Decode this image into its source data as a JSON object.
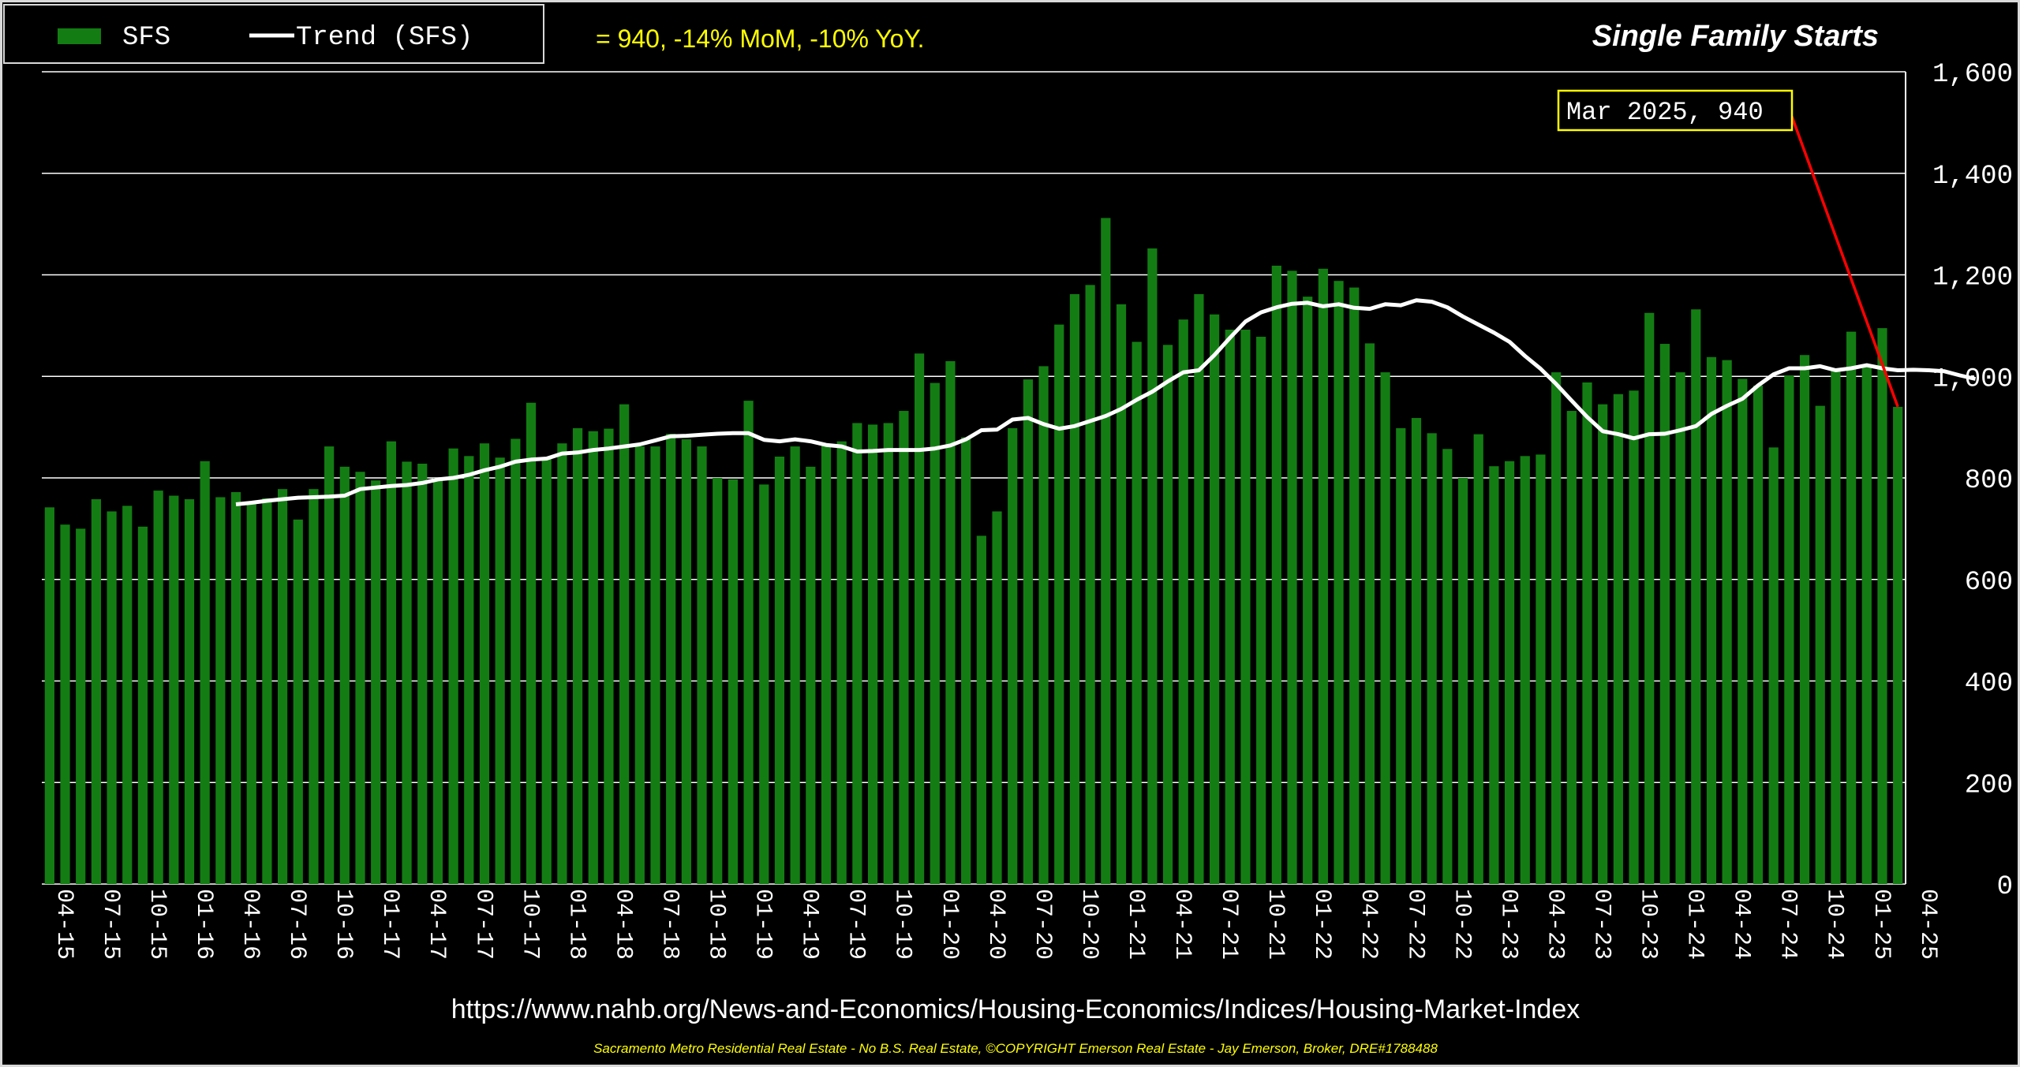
{
  "colors": {
    "background": "#000000",
    "bars": "#137d13",
    "trend": "#ffffff",
    "subtitle": "#ffff00",
    "callout_border": "#ffff00",
    "callout_line": "#ff0000",
    "grid": "#ffffff",
    "footer": "#ffff00"
  },
  "legend": {
    "bar_label": "SFS",
    "line_label": "Trend (SFS)"
  },
  "subtitle": "= 940, -14% MoM, -10% YoY.",
  "footer": {
    "url": "https://www.nahb.org/News-and-Economics/Housing-Economics/Indices/Housing-Market-Index",
    "credit": "Sacramento Metro Residential Real Estate - No B.S. Real Estate, ©COPYRIGHT Emerson Real Estate - Jay Emerson, Broker, DRE#1788488"
  },
  "chart_data": {
    "type": "bar",
    "title": "Single Family Starts",
    "ylim": [
      0,
      1600
    ],
    "yticks": [
      0,
      200,
      400,
      600,
      800,
      1000,
      1200,
      1400,
      1600
    ],
    "y_axis_side": "right",
    "grid": true,
    "legend_position": "top-left",
    "x_start": "2015-04",
    "x_tick_labels": [
      "04-15",
      "07-15",
      "10-15",
      "01-16",
      "04-16",
      "07-16",
      "10-16",
      "01-17",
      "04-17",
      "07-17",
      "10-17",
      "01-18",
      "04-18",
      "07-18",
      "10-18",
      "01-19",
      "04-19",
      "07-19",
      "10-19",
      "01-20",
      "04-20",
      "07-20",
      "10-20",
      "01-21",
      "04-21",
      "07-21",
      "10-21",
      "01-22",
      "04-22",
      "07-22",
      "10-22",
      "01-23",
      "04-23",
      "07-23",
      "10-23",
      "01-24",
      "04-24",
      "07-24",
      "10-24",
      "01-25",
      "04-25"
    ],
    "series": [
      {
        "name": "SFS",
        "type": "bar",
        "values": [
          742,
          708,
          700,
          758,
          734,
          745,
          704,
          775,
          765,
          758,
          833,
          762,
          772,
          748,
          760,
          778,
          718,
          778,
          862,
          822,
          812,
          795,
          872,
          832,
          828,
          800,
          858,
          843,
          868,
          840,
          877,
          948,
          837,
          868,
          898,
          892,
          897,
          945,
          862,
          862,
          887,
          876,
          862,
          800,
          797,
          952,
          787,
          842,
          862,
          822,
          866,
          872,
          908,
          905,
          908,
          932,
          1045,
          987,
          1030,
          880,
          686,
          734,
          898,
          994,
          1020,
          1102,
          1162,
          1180,
          1312,
          1142,
          1068,
          1252,
          1062,
          1112,
          1162,
          1122,
          1092,
          1092,
          1078,
          1218,
          1208,
          1157,
          1212,
          1188,
          1175,
          1065,
          1008,
          898,
          918,
          888,
          857,
          800,
          886,
          823,
          833,
          843,
          846,
          1008,
          932,
          988,
          945,
          965,
          972,
          1125,
          1064,
          1008,
          1132,
          1038,
          1032,
          995,
          982,
          860,
          1002,
          1042,
          942,
          1012,
          1088,
          1022,
          1095,
          940
        ]
      },
      {
        "name": "Trend (SFS)",
        "type": "line",
        "start_index": 12,
        "values": [
          748,
          751,
          755,
          758,
          761,
          762,
          763,
          765,
          778,
          781,
          784,
          786,
          790,
          797,
          800,
          806,
          815,
          822,
          832,
          836,
          838,
          848,
          850,
          855,
          858,
          862,
          866,
          874,
          882,
          883,
          885,
          887,
          888,
          888,
          875,
          872,
          876,
          872,
          865,
          862,
          852,
          853,
          855,
          855,
          855,
          858,
          864,
          876,
          894,
          895,
          915,
          918,
          906,
          897,
          902,
          912,
          922,
          936,
          954,
          970,
          990,
          1008,
          1012,
          1042,
          1076,
          1108,
          1126,
          1136,
          1143,
          1145,
          1138,
          1142,
          1135,
          1133,
          1142,
          1140,
          1150,
          1147,
          1136,
          1118,
          1102,
          1086,
          1068,
          1040,
          1015,
          985,
          952,
          920,
          892,
          886,
          878,
          886,
          887,
          894,
          902,
          926,
          942,
          956,
          982,
          1004,
          1016,
          1016,
          1020,
          1012,
          1016,
          1022,
          1016,
          1012,
          1013,
          1012,
          1010,
          1002,
          995
        ]
      }
    ],
    "annotation": {
      "text": "Mar 2025,  940",
      "month": "2025-03",
      "value": 940
    }
  }
}
